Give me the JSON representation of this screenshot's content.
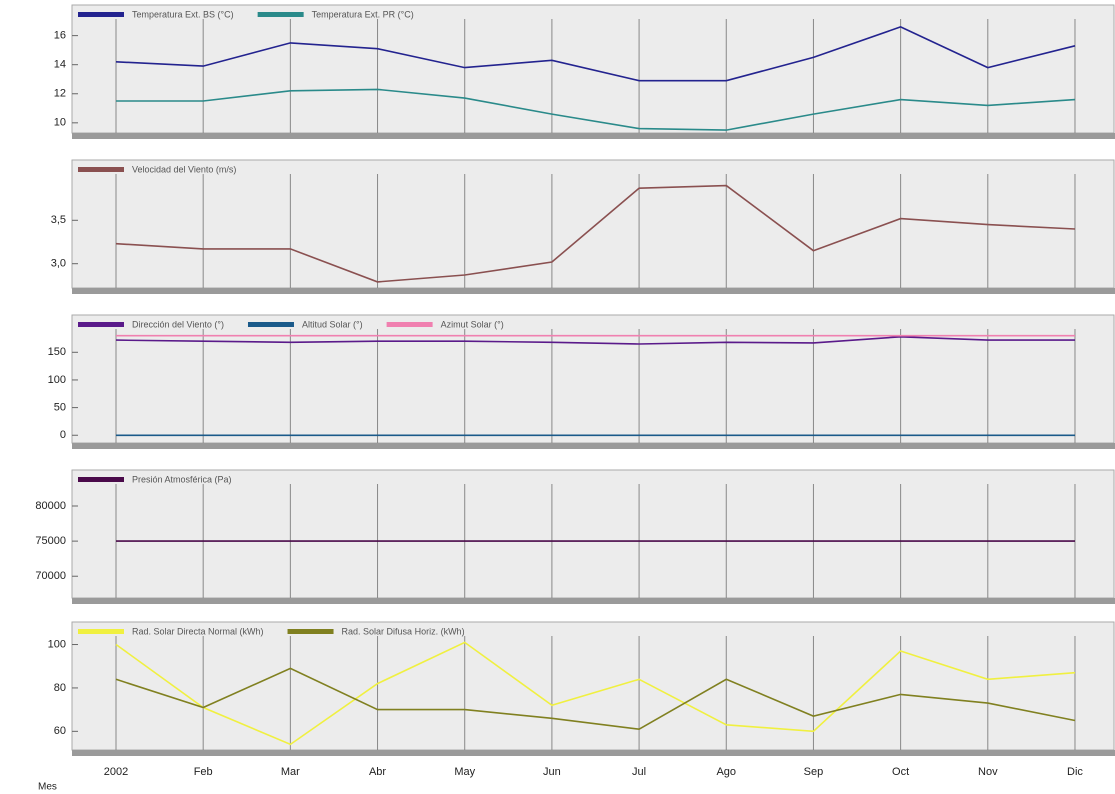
{
  "chart_data": [
    {
      "type": "line",
      "ylim": [
        9.3,
        17.9
      ],
      "yticks": [
        10,
        12,
        14,
        16
      ],
      "series": [
        {
          "name": "Temperatura Ext. BS (°C)",
          "color": "#23238f",
          "values": [
            14.2,
            13.9,
            15.5,
            15.1,
            13.8,
            14.3,
            12.9,
            12.9,
            14.5,
            16.6,
            13.8,
            15.3
          ]
        },
        {
          "name": "Temperatura Ext. PR (°C)",
          "color": "#2a8a8a",
          "values": [
            11.5,
            11.5,
            12.2,
            12.3,
            11.7,
            10.6,
            9.6,
            9.5,
            10.6,
            11.6,
            11.2,
            11.6
          ]
        }
      ]
    },
    {
      "type": "line",
      "ylim": [
        2.72,
        4.16
      ],
      "yticks": [
        {
          "value": 3.0,
          "label": "3,0"
        },
        {
          "value": 3.5,
          "label": "3,5"
        }
      ],
      "series": [
        {
          "name": "Velocidad del Viento (m/s)",
          "color": "#8a5050",
          "values": [
            3.23,
            3.17,
            3.17,
            2.79,
            2.87,
            3.02,
            3.87,
            3.9,
            3.15,
            3.52,
            3.45,
            3.4
          ]
        }
      ]
    },
    {
      "type": "line",
      "ylim": [
        -14,
        212
      ],
      "yticks": [
        0,
        50,
        100,
        150
      ],
      "series": [
        {
          "name": "Dirección del Viento (°)",
          "color": "#5a1a8a",
          "values": [
            172,
            170,
            168,
            170,
            170,
            168,
            165,
            168,
            167,
            178,
            172,
            172
          ]
        },
        {
          "name": "Altitud Solar (°)",
          "color": "#1a5a8a",
          "values": [
            0,
            0,
            0,
            0,
            0,
            0,
            0,
            0,
            0,
            0,
            0,
            0
          ]
        },
        {
          "name": "Azimut Solar (°)",
          "color": "#f080b0",
          "values": [
            180,
            180,
            180,
            180,
            180,
            180,
            180,
            180,
            180,
            180,
            180,
            180
          ]
        }
      ]
    },
    {
      "type": "line",
      "ylim": [
        66900,
        84700
      ],
      "yticks": [
        70000,
        75000,
        80000
      ],
      "series": [
        {
          "name": "Presión Atmosférica (Pa)",
          "color": "#4a0a4a",
          "values": [
            75000,
            75000,
            75000,
            75000,
            75000,
            75000,
            75000,
            75000,
            75000,
            75000,
            75000,
            75000
          ]
        }
      ]
    },
    {
      "type": "line",
      "ylim": [
        51.4,
        109
      ],
      "yticks": [
        60,
        80,
        100
      ],
      "x_label": "Mes",
      "categories": [
        "2002",
        "Feb",
        "Mar",
        "Abr",
        "May",
        "Jun",
        "Jul",
        "Ago",
        "Sep",
        "Oct",
        "Nov",
        "Dic"
      ],
      "series": [
        {
          "name": "Rad. Solar Directa Normal (kWh)",
          "color": "#f0f040",
          "values": [
            100,
            71,
            54,
            82,
            101,
            72,
            84,
            63,
            60,
            97,
            84,
            87
          ]
        },
        {
          "name": "Rad. Solar Difusa Horiz. (kWh)",
          "color": "#808020",
          "values": [
            84,
            71,
            89,
            70,
            70,
            66,
            61,
            84,
            67,
            77,
            73,
            65
          ]
        }
      ]
    }
  ]
}
